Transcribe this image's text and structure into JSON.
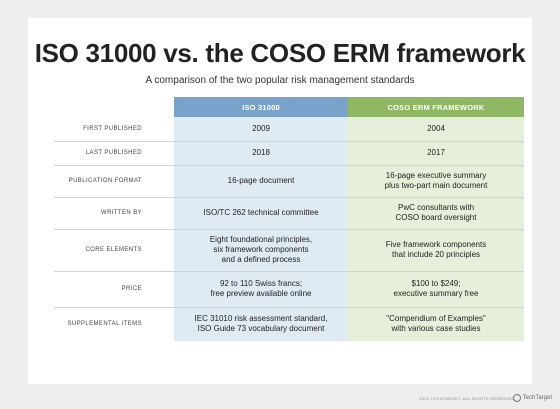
{
  "title": "ISO 31000 vs. the COSO ERM framework",
  "subtitle": "A comparison of the two popular risk management standards",
  "columns": {
    "iso": "ISO 31000",
    "coso": "COSO ERM FRAMEWORK"
  },
  "colors": {
    "iso_header": "#7aa3cc",
    "coso_header": "#8fb865",
    "iso_cell": "#e0eaf3",
    "coso_cell": "#e6efda"
  },
  "rows": [
    {
      "label": "FIRST PUBLISHED",
      "iso": [
        "2009"
      ],
      "coso": [
        "2004"
      ]
    },
    {
      "label": "LAST PUBLISHED",
      "iso": [
        "2018"
      ],
      "coso": [
        "2017"
      ]
    },
    {
      "label": "PUBLICATION FORMAT",
      "iso": [
        "16-page document"
      ],
      "coso": [
        "16-page executive summary",
        "plus two-part main document"
      ]
    },
    {
      "label": "WRITTEN BY",
      "iso": [
        "ISO/TC 262 technical committee"
      ],
      "coso": [
        "PwC consultants with",
        "COSO board oversight"
      ]
    },
    {
      "label": "CORE ELEMENTS",
      "iso": [
        "Eight foundational principles,",
        "six framework components",
        "and a defined process"
      ],
      "coso": [
        "Five framework components",
        "that include 20 principles"
      ]
    },
    {
      "label": "PRICE",
      "iso": [
        "92 to 110 Swiss francs;",
        "free preview available online"
      ],
      "coso": [
        "$100 to $249;",
        "executive summary free"
      ]
    },
    {
      "label": "SUPPLEMENTAL ITEMS",
      "iso": [
        "IEC 31010 risk assessment standard,",
        "ISO Guide 73 vocabulary document"
      ],
      "coso": [
        "\"Compendium of Examples\"",
        "with various case studies"
      ]
    }
  ],
  "footer": {
    "copyright": "2023 TECHTARGET. ALL RIGHTS RESERVED.",
    "brand": "TechTarget",
    "brand_icon": "techtarget-logo-icon"
  }
}
